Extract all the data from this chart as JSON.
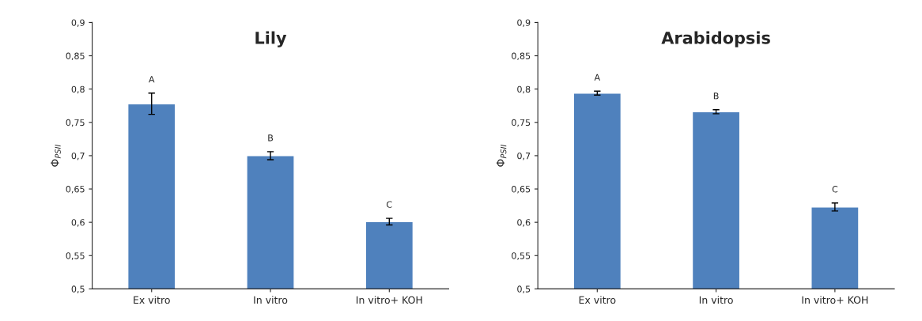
{
  "chart_data": [
    {
      "type": "bar",
      "title": "Lily",
      "ylabel": "Φ$_{PSII}$",
      "categories": [
        "Ex vitro",
        "In vitro",
        "In vitro+ KOH"
      ],
      "values": [
        0.778,
        0.7,
        0.601
      ],
      "errors": [
        0.016,
        0.006,
        0.005
      ],
      "color": "#4f81bd",
      "ylim": [
        0.5,
        0.9
      ],
      "yticks": [
        {
          "value": 0.5,
          "label": "0,5"
        },
        {
          "value": 0.55,
          "label": "0,55"
        },
        {
          "value": 0.6,
          "label": "0,6"
        },
        {
          "value": 0.65,
          "label": "0,65"
        },
        {
          "value": 0.7,
          "label": "0,7"
        },
        {
          "value": 0.75,
          "label": "0,75"
        },
        {
          "value": 0.8,
          "label": "0,8"
        },
        {
          "value": 0.85,
          "label": "0,85"
        },
        {
          "value": 0.9,
          "label": "0,9"
        }
      ],
      "annotations": [
        "A",
        "B",
        "C"
      ],
      "grid": false
    },
    {
      "type": "bar",
      "title": "Arabidopsis",
      "ylabel": "Φ$_{PSII}$",
      "categories": [
        "Ex vitro",
        "In vitro",
        "In vitro+ KOH"
      ],
      "values": [
        0.794,
        0.766,
        0.623
      ],
      "errors": [
        0.003,
        0.003,
        0.006
      ],
      "color": "#4f81bd",
      "ylim": [
        0.5,
        0.9
      ],
      "yticks": [
        {
          "value": 0.5,
          "label": "0,5"
        },
        {
          "value": 0.55,
          "label": "0,55"
        },
        {
          "value": 0.6,
          "label": "0,6"
        },
        {
          "value": 0.65,
          "label": "0,65"
        },
        {
          "value": 0.7,
          "label": "0,7"
        },
        {
          "value": 0.75,
          "label": "0,75"
        },
        {
          "value": 0.8,
          "label": "0,8"
        },
        {
          "value": 0.85,
          "label": "0,85"
        },
        {
          "value": 0.9,
          "label": "0,9"
        }
      ],
      "annotations": [
        "A",
        "B",
        "C"
      ],
      "grid": false
    }
  ]
}
